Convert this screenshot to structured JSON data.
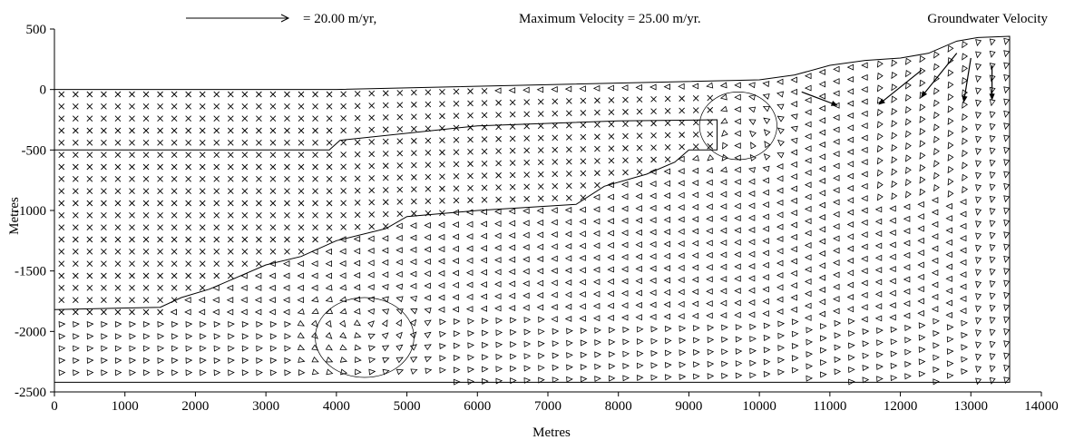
{
  "header": {
    "scale_text": "=   20.00 m/yr,",
    "max_velocity_text": "Maximum Velocity =   25.00 m/yr.",
    "plot_title": "Groundwater Velocity"
  },
  "chart_data": {
    "type": "quiver",
    "title": "Groundwater Velocity",
    "xlabel": "Metres",
    "ylabel": "Metres",
    "xlim": [
      0,
      14000
    ],
    "ylim": [
      -2500,
      500
    ],
    "x_ticks": [
      0,
      1000,
      2000,
      3000,
      4000,
      5000,
      6000,
      7000,
      8000,
      9000,
      10000,
      11000,
      12000,
      13000,
      14000
    ],
    "y_ticks": [
      500,
      0,
      -500,
      -1000,
      -1500,
      -2000,
      -2500
    ],
    "x_tick_labels": [
      "0",
      "1000",
      "2000",
      "3000",
      "4000",
      "5000",
      "6000",
      "7000",
      "8000",
      "9000",
      "10000",
      "11000",
      "12000",
      "13000",
      "14000"
    ],
    "y_tick_labels": [
      "500",
      "0",
      "-500",
      "-1000",
      "-1500",
      "-2000",
      "-2500"
    ],
    "reference_vector_m_per_yr": 20.0,
    "maximum_velocity_m_per_yr": 25.0,
    "grid": false,
    "grid_spacing_x_m": 200,
    "grid_spacing_y_m": 100,
    "domain_x_range": [
      0,
      13550
    ],
    "domain_bottom_y": -2420,
    "top_surface": [
      [
        0,
        0
      ],
      [
        4000,
        0
      ],
      [
        10000,
        80
      ],
      [
        10500,
        120
      ],
      [
        11000,
        200
      ],
      [
        11500,
        240
      ],
      [
        12000,
        260
      ],
      [
        12400,
        300
      ],
      [
        12800,
        400
      ],
      [
        13100,
        430
      ],
      [
        13550,
        440
      ]
    ],
    "no_flow_boundary": [
      [
        0,
        -500
      ],
      [
        3900,
        -500
      ],
      [
        4050,
        -420
      ],
      [
        6000,
        -300
      ],
      [
        8000,
        -260
      ],
      [
        9400,
        -250
      ],
      [
        9400,
        -500
      ],
      [
        9000,
        -500
      ],
      [
        8800,
        -600
      ],
      [
        8400,
        -700
      ],
      [
        7800,
        -800
      ],
      [
        7400,
        -950
      ],
      [
        6000,
        -1000
      ],
      [
        5000,
        -1050
      ],
      [
        4700,
        -1150
      ],
      [
        4000,
        -1250
      ],
      [
        3500,
        -1380
      ],
      [
        3000,
        -1450
      ],
      [
        2600,
        -1550
      ],
      [
        2200,
        -1650
      ],
      [
        1800,
        -1720
      ],
      [
        1500,
        -1800
      ],
      [
        0,
        -1820
      ]
    ],
    "circulation_cells": [
      {
        "center": [
          4400,
          -2050
        ],
        "radius_x": 700,
        "radius_y": 330
      },
      {
        "center": [
          9700,
          -300
        ],
        "radius_x": 550,
        "radius_y": 280
      }
    ],
    "recharge_arrows": [
      {
        "from": [
          10600,
          -20
        ],
        "to": [
          11100,
          -130
        ]
      },
      {
        "from": [
          12300,
          160
        ],
        "to": [
          11700,
          -120
        ]
      },
      {
        "from": [
          12800,
          300
        ],
        "to": [
          12300,
          -60
        ]
      },
      {
        "from": [
          13000,
          260
        ],
        "to": [
          12900,
          -100
        ]
      },
      {
        "from": [
          13300,
          200
        ],
        "to": [
          13300,
          -80
        ]
      }
    ]
  }
}
